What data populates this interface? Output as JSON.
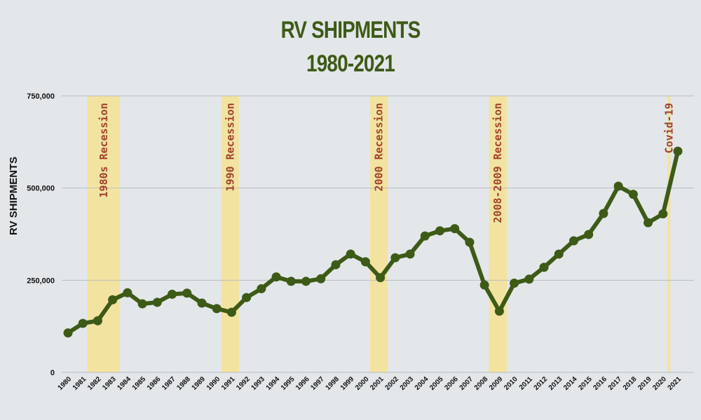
{
  "chart_data": {
    "type": "line",
    "title_line1": "RV SHIPMENTS",
    "title_line2": "1980-2021",
    "xlabel": "",
    "ylabel": "RV SHIPMENTS",
    "ylim": [
      0,
      750000
    ],
    "yticks": [
      {
        "value": 0,
        "label": "0"
      },
      {
        "value": 250000,
        "label": "250,000"
      },
      {
        "value": 500000,
        "label": "500,000"
      },
      {
        "value": 750000,
        "label": "750,000"
      }
    ],
    "grid": true,
    "categories": [
      "1980",
      "1981",
      "1982",
      "1983",
      "1984",
      "1985",
      "1986",
      "1987",
      "1988",
      "1989",
      "1990",
      "1991",
      "1992",
      "1993",
      "1994",
      "1995",
      "1996",
      "1997",
      "1998",
      "1999",
      "2000",
      "2001",
      "2002",
      "2003",
      "2004",
      "2005",
      "2006",
      "2007",
      "2008",
      "2009",
      "2010",
      "2011",
      "2012",
      "2013",
      "2014",
      "2015",
      "2016",
      "2017",
      "2018",
      "2019",
      "2020",
      "2021"
    ],
    "series": [
      {
        "values": [
          107000,
          133000,
          140000,
          197000,
          216000,
          186000,
          190000,
          212000,
          215000,
          188000,
          173000,
          163000,
          203000,
          227000,
          259000,
          247000,
          247000,
          254000,
          292000,
          321000,
          300000,
          257000,
          311000,
          321000,
          370000,
          384000,
          390000,
          353000,
          237000,
          166000,
          242000,
          253000,
          285000,
          321000,
          357000,
          374000,
          431000,
          505000,
          483000,
          406000,
          430000,
          600000
        ]
      }
    ],
    "bands": [
      {
        "label": "1980s Recession",
        "start": "1981",
        "end": "1983"
      },
      {
        "label": "1990 Recession",
        "start": "1990",
        "end": "1991"
      },
      {
        "label": "2000 Recession",
        "start": "2000",
        "end": "2001"
      },
      {
        "label": "2008-2009 Recession",
        "start": "2008",
        "end": "2009"
      },
      {
        "label": "Covid-19",
        "start": "2020",
        "end": "2020"
      }
    ],
    "colors": {
      "background": "#e3e7ea",
      "line": "#3d5a17",
      "band": "#f3e3a1",
      "band_text": "#a2432c",
      "title": "#3d5a17",
      "grid": "#b8bdbf"
    }
  }
}
